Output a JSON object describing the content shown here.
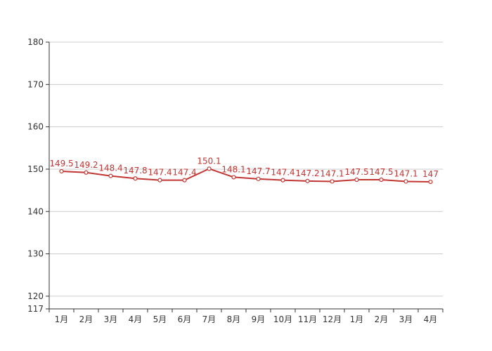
{
  "chart_data": {
    "type": "line",
    "title": "",
    "xlabel": "",
    "ylabel": "",
    "categories": [
      "1月",
      "2月",
      "3月",
      "4月",
      "5月",
      "6月",
      "7月",
      "8月",
      "9月",
      "10月",
      "11月",
      "12月",
      "1月",
      "2月",
      "3月",
      "4月"
    ],
    "series": [
      {
        "values": [
          149.5,
          149.2,
          148.4,
          147.8,
          147.4,
          147.4,
          150.1,
          148.1,
          147.7,
          147.4,
          147.2,
          147.1,
          147.5,
          147.5,
          147.1,
          147
        ],
        "color": "#c23531"
      }
    ],
    "ylim": [
      117,
      180
    ],
    "yticks": [
      117,
      120,
      130,
      140,
      150,
      160,
      170,
      180
    ],
    "grid": true,
    "data_labels": true,
    "legend": "none"
  },
  "colors": {
    "series": "#c23531",
    "grid": "#cccccc",
    "axis": "#333333",
    "text": "#333333"
  }
}
